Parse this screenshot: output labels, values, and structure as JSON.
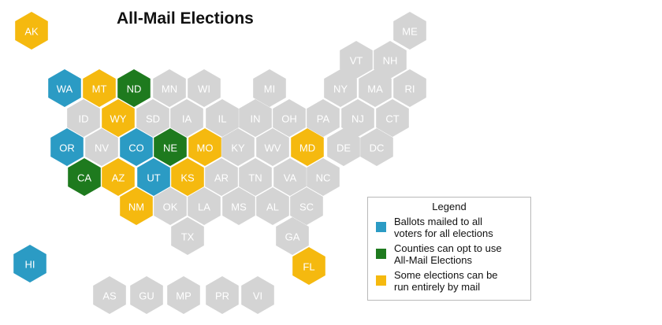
{
  "title": "All-Mail Elections",
  "colors": {
    "all_mail": "#2b9bc4",
    "county_option": "#1e7a1e",
    "some_elections": "#f5b90f",
    "none": "#d4d4d4"
  },
  "legend": {
    "title": "Legend",
    "items": [
      {
        "key": "all_mail",
        "lines": [
          "Ballots mailed to all",
          "voters for all elections"
        ]
      },
      {
        "key": "county_option",
        "lines": [
          "Counties can opt to use",
          "All-Mail Elections"
        ]
      },
      {
        "key": "some_elections",
        "lines": [
          "Some elections can be",
          "run entirely by mail"
        ]
      }
    ]
  },
  "states": [
    {
      "abbr": "AK",
      "status": "some_elections"
    },
    {
      "abbr": "ME",
      "status": "none"
    },
    {
      "abbr": "VT",
      "status": "none"
    },
    {
      "abbr": "NH",
      "status": "none"
    },
    {
      "abbr": "WA",
      "status": "all_mail"
    },
    {
      "abbr": "MT",
      "status": "some_elections"
    },
    {
      "abbr": "ND",
      "status": "county_option"
    },
    {
      "abbr": "MN",
      "status": "none"
    },
    {
      "abbr": "WI",
      "status": "none"
    },
    {
      "abbr": "MI",
      "status": "none"
    },
    {
      "abbr": "NY",
      "status": "none"
    },
    {
      "abbr": "MA",
      "status": "none"
    },
    {
      "abbr": "RI",
      "status": "none"
    },
    {
      "abbr": "ID",
      "status": "none"
    },
    {
      "abbr": "WY",
      "status": "some_elections"
    },
    {
      "abbr": "SD",
      "status": "none"
    },
    {
      "abbr": "IA",
      "status": "none"
    },
    {
      "abbr": "IL",
      "status": "none"
    },
    {
      "abbr": "IN",
      "status": "none"
    },
    {
      "abbr": "OH",
      "status": "none"
    },
    {
      "abbr": "PA",
      "status": "none"
    },
    {
      "abbr": "NJ",
      "status": "none"
    },
    {
      "abbr": "CT",
      "status": "none"
    },
    {
      "abbr": "OR",
      "status": "all_mail"
    },
    {
      "abbr": "NV",
      "status": "none"
    },
    {
      "abbr": "CO",
      "status": "all_mail"
    },
    {
      "abbr": "NE",
      "status": "county_option"
    },
    {
      "abbr": "MO",
      "status": "some_elections"
    },
    {
      "abbr": "KY",
      "status": "none"
    },
    {
      "abbr": "WV",
      "status": "none"
    },
    {
      "abbr": "MD",
      "status": "some_elections"
    },
    {
      "abbr": "DE",
      "status": "none"
    },
    {
      "abbr": "DC",
      "status": "none"
    },
    {
      "abbr": "CA",
      "status": "county_option"
    },
    {
      "abbr": "AZ",
      "status": "some_elections"
    },
    {
      "abbr": "UT",
      "status": "all_mail"
    },
    {
      "abbr": "KS",
      "status": "some_elections"
    },
    {
      "abbr": "AR",
      "status": "none"
    },
    {
      "abbr": "TN",
      "status": "none"
    },
    {
      "abbr": "VA",
      "status": "none"
    },
    {
      "abbr": "NC",
      "status": "none"
    },
    {
      "abbr": "NM",
      "status": "some_elections"
    },
    {
      "abbr": "OK",
      "status": "none"
    },
    {
      "abbr": "LA",
      "status": "none"
    },
    {
      "abbr": "MS",
      "status": "none"
    },
    {
      "abbr": "AL",
      "status": "none"
    },
    {
      "abbr": "SC",
      "status": "none"
    },
    {
      "abbr": "TX",
      "status": "none"
    },
    {
      "abbr": "GA",
      "status": "none"
    },
    {
      "abbr": "HI",
      "status": "all_mail"
    },
    {
      "abbr": "FL",
      "status": "some_elections"
    },
    {
      "abbr": "AS",
      "status": "none"
    },
    {
      "abbr": "GU",
      "status": "none"
    },
    {
      "abbr": "MP",
      "status": "none"
    },
    {
      "abbr": "PR",
      "status": "none"
    },
    {
      "abbr": "VI",
      "status": "none"
    }
  ]
}
